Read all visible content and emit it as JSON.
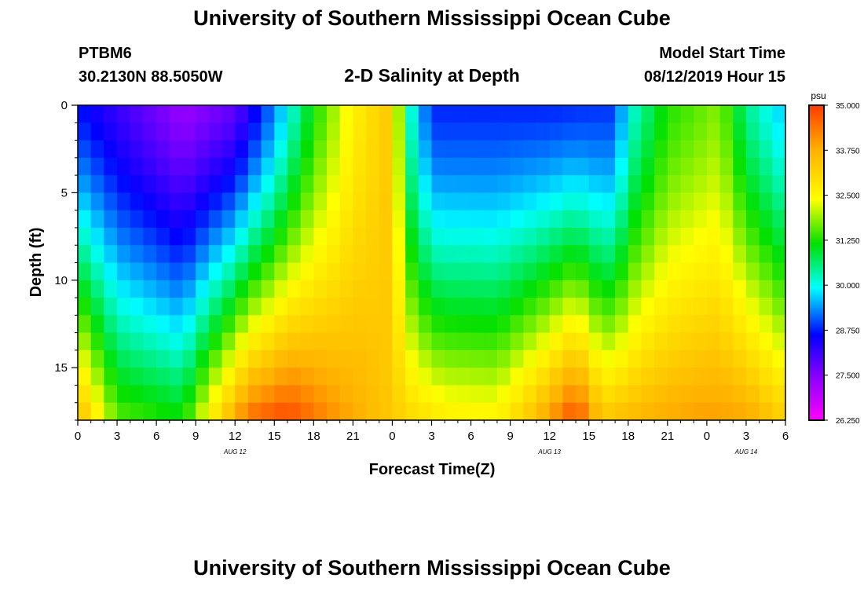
{
  "header": {
    "title": "University of Southern Mississippi Ocean Cube",
    "station_id": "PTBM6",
    "location": "30.2130N 88.5050W",
    "model_start_label": "Model Start Time",
    "model_start_value": "08/12/2019 Hour 15"
  },
  "footer": {
    "title": "University of Southern Mississippi Ocean Cube"
  },
  "chart_data": {
    "type": "heatmap",
    "title": "2-D Salinity at Depth",
    "xlabel": "Forecast Time(Z)",
    "ylabel": "Depth (ft)",
    "x_tick_labels": [
      "0",
      "3",
      "6",
      "9",
      "12",
      "15",
      "18",
      "21",
      "0",
      "3",
      "6",
      "9",
      "12",
      "15",
      "18",
      "21",
      "0",
      "3",
      "6"
    ],
    "x_range_hours": [
      0,
      54
    ],
    "x_step_hours": 1,
    "date_labels": [
      {
        "label": "AUG 12",
        "hour": 12
      },
      {
        "label": "AUG 13",
        "hour": 36
      },
      {
        "label": "AUG 14",
        "hour": 51
      }
    ],
    "y_tick_labels": [
      "0",
      "5",
      "10",
      "15"
    ],
    "y_tick_values": [
      0,
      5,
      10,
      15
    ],
    "y_range_ft": [
      0,
      18
    ],
    "y_step_ft": 1,
    "colorbar": {
      "unit": "psu",
      "min": 26.25,
      "max": 35.0,
      "tick_labels": [
        "35.000",
        "33.750",
        "32.500",
        "31.250",
        "30.000",
        "28.750",
        "27.500",
        "26.250"
      ],
      "tick_values": [
        35.0,
        33.75,
        32.5,
        31.25,
        30.0,
        28.75,
        27.5,
        26.25
      ]
    },
    "surface_salinity_psu": [
      {
        "hour": 0,
        "psu": 28.7
      },
      {
        "hour": 4,
        "psu": 28.0
      },
      {
        "hour": 8,
        "psu": 27.3
      },
      {
        "hour": 12,
        "psu": 27.8
      },
      {
        "hour": 15,
        "psu": 29.3
      },
      {
        "hour": 18,
        "psu": 31.2
      },
      {
        "hour": 21,
        "psu": 32.6
      },
      {
        "hour": 24,
        "psu": 33.4
      },
      {
        "hour": 25,
        "psu": 30.5
      },
      {
        "hour": 27,
        "psu": 28.8
      },
      {
        "hour": 36,
        "psu": 28.8
      },
      {
        "hour": 41,
        "psu": 28.9
      },
      {
        "hour": 42,
        "psu": 30.0
      },
      {
        "hour": 45,
        "psu": 31.3
      },
      {
        "hour": 49,
        "psu": 31.8
      },
      {
        "hour": 51,
        "psu": 30.5
      },
      {
        "hour": 54,
        "psu": 29.6
      }
    ],
    "bottom_salinity_psu": [
      {
        "hour": 0,
        "psu": 33.7
      },
      {
        "hour": 3,
        "psu": 31.6
      },
      {
        "hour": 8,
        "psu": 31.2
      },
      {
        "hour": 10,
        "psu": 32.6
      },
      {
        "hour": 13,
        "psu": 34.5
      },
      {
        "hour": 16,
        "psu": 34.9
      },
      {
        "hour": 19,
        "psu": 34.2
      },
      {
        "hour": 24,
        "psu": 33.3
      },
      {
        "hour": 28,
        "psu": 32.7
      },
      {
        "hour": 32,
        "psu": 32.6
      },
      {
        "hour": 35,
        "psu": 33.6
      },
      {
        "hour": 38,
        "psu": 34.9
      },
      {
        "hour": 40,
        "psu": 33.4
      },
      {
        "hour": 44,
        "psu": 33.8
      },
      {
        "hour": 48,
        "psu": 34.0
      },
      {
        "hour": 51,
        "psu": 33.9
      },
      {
        "hour": 54,
        "psu": 33.2
      }
    ]
  }
}
